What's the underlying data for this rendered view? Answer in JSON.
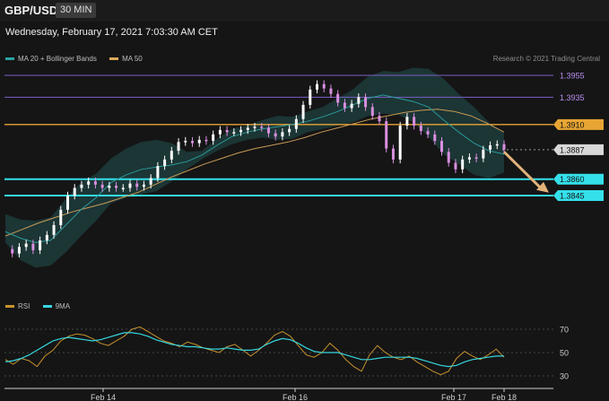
{
  "header": {
    "symbol": "GBP/USD",
    "timeframe": "30 MIN",
    "datetime": "Wednesday, February 17, 2021 7:03:30 AM CET",
    "credit": "Research © 2021 Trading Central"
  },
  "legend_main": [
    {
      "label": "MA 20 + Bollinger Bands",
      "color": "#2aa3a3"
    },
    {
      "label": "MA 50",
      "color": "#d9a85a"
    }
  ],
  "legend_rsi": [
    {
      "label": "RSI",
      "color": "#c8922e"
    },
    {
      "label": "9MA",
      "color": "#35d6e0"
    }
  ],
  "colors": {
    "candle_up": "#ffffff",
    "candle_down": "#d98fe0",
    "bollinger_fill": "#1d3838",
    "ma20": "#2a9a9a",
    "ma50": "#c99a55",
    "resistance_purple": "#7a5fc4",
    "resistance_orange": "#e7a534",
    "support_cyan": "#35e0ea",
    "current_price": "#d8d8d8",
    "arrow": "#e1b27a"
  },
  "chart_data": [
    {
      "type": "candlestick",
      "name": "price",
      "ylim": [
        1.378,
        1.3975
      ],
      "x_ticks": [
        "Feb 14",
        "Feb 16",
        "Feb 17",
        "Feb 18"
      ],
      "levels": [
        {
          "value": 1.3955,
          "label": "1.3955",
          "style": "resistance_purple"
        },
        {
          "value": 1.3935,
          "label": "1.3935",
          "style": "resistance_purple"
        },
        {
          "value": 1.391,
          "label": "1.3910",
          "style": "resistance_orange"
        },
        {
          "value": 1.3887,
          "label": "1.3887",
          "style": "current_price"
        },
        {
          "value": 1.386,
          "label": "1.3860",
          "style": "support_cyan"
        },
        {
          "value": 1.3845,
          "label": "1.3845",
          "style": "support_cyan"
        }
      ],
      "close_path": [
        1.3796,
        1.3792,
        1.3798,
        1.3801,
        1.3795,
        1.3804,
        1.3809,
        1.3818,
        1.3832,
        1.3845,
        1.3852,
        1.3855,
        1.3858,
        1.3855,
        1.3852,
        1.3854,
        1.3852,
        1.3852,
        1.3856,
        1.3853,
        1.3855,
        1.3861,
        1.3872,
        1.3878,
        1.3886,
        1.3894,
        1.3895,
        1.3893,
        1.3896,
        1.3895,
        1.3901,
        1.3905,
        1.3903,
        1.3903,
        1.3905,
        1.3907,
        1.3908,
        1.3907,
        1.3902,
        1.3899,
        1.3903,
        1.3906,
        1.3915,
        1.3928,
        1.3942,
        1.3947,
        1.3943,
        1.3938,
        1.393,
        1.3925,
        1.3929,
        1.3935,
        1.3926,
        1.3918,
        1.3913,
        1.3888,
        1.3878,
        1.3909,
        1.3917,
        1.3909,
        1.3904,
        1.3901,
        1.3895,
        1.3885,
        1.3875,
        1.3869,
        1.3878,
        1.388,
        1.3879,
        1.3887,
        1.3891,
        1.3892,
        1.3887
      ],
      "bollinger": {
        "upper": [
          1.3828,
          1.3823,
          1.3822,
          1.3825,
          1.3842,
          1.3857,
          1.3865,
          1.3879,
          1.3888,
          1.3894,
          1.3896,
          1.3893,
          1.3885,
          1.3886,
          1.3897,
          1.3906,
          1.3909,
          1.3914,
          1.3918,
          1.3917,
          1.3922,
          1.3926,
          1.3934,
          1.3942,
          1.3954,
          1.3959,
          1.3958,
          1.3962,
          1.3961,
          1.3952,
          1.3938,
          1.3926,
          1.3912,
          1.3902
        ],
        "lower": [
          1.3802,
          1.3786,
          1.3779,
          1.3781,
          1.3793,
          1.3808,
          1.3822,
          1.3838,
          1.3843,
          1.3846,
          1.3849,
          1.3858,
          1.3869,
          1.3878,
          1.3886,
          1.3892,
          1.3896,
          1.3898,
          1.3896,
          1.3897,
          1.3903,
          1.3906,
          1.3909,
          1.3912,
          1.3918,
          1.392,
          1.3919,
          1.3912,
          1.3899,
          1.3883,
          1.3874,
          1.3864,
          1.3861,
          1.3866
        ]
      },
      "ma20": [
        1.3812,
        1.3806,
        1.3802,
        1.3804,
        1.3818,
        1.3832,
        1.3843,
        1.3857,
        1.3864,
        1.3869,
        1.3871,
        1.3873,
        1.3876,
        1.3882,
        1.3891,
        1.3899,
        1.3903,
        1.3906,
        1.3908,
        1.391,
        1.3913,
        1.3917,
        1.3922,
        1.3928,
        1.3934,
        1.3937,
        1.3934,
        1.3931,
        1.3926,
        1.3914,
        1.3903,
        1.3893,
        1.3886,
        1.3883
      ],
      "ma50": [
        1.3808,
        1.3814,
        1.382,
        1.3825,
        1.383,
        1.3834,
        1.3838,
        1.3843,
        1.3848,
        1.3855,
        1.3862,
        1.3868,
        1.3874,
        1.3879,
        1.3884,
        1.3888,
        1.3891,
        1.3894,
        1.3898,
        1.3903,
        1.3907,
        1.3911,
        1.3915,
        1.3918,
        1.3921,
        1.3923,
        1.3924,
        1.3922,
        1.3918,
        1.3911,
        1.3903
      ]
    },
    {
      "type": "line",
      "name": "rsi",
      "ylim": [
        25,
        80
      ],
      "y_ticks": [
        70,
        50,
        30
      ],
      "series": [
        {
          "name": "RSI",
          "values": [
            44,
            40,
            45,
            43,
            38,
            47,
            52,
            60,
            64,
            66,
            65,
            62,
            58,
            56,
            60,
            64,
            70,
            72,
            68,
            64,
            60,
            58,
            55,
            59,
            57,
            54,
            52,
            50,
            55,
            57,
            52,
            47,
            52,
            58,
            65,
            68,
            64,
            56,
            48,
            46,
            50,
            58,
            52,
            44,
            38,
            34,
            48,
            56,
            50,
            46,
            44,
            47,
            42,
            38,
            34,
            31,
            34,
            45,
            51,
            47,
            44,
            48,
            53,
            46
          ]
        },
        {
          "name": "9MA",
          "values": [
            42,
            43,
            45,
            48,
            52,
            56,
            60,
            62,
            63,
            62,
            61,
            60,
            61,
            63,
            65,
            67,
            67,
            66,
            64,
            61,
            59,
            57,
            56,
            55,
            55,
            54,
            53,
            53,
            54,
            53,
            52,
            52,
            53,
            57,
            60,
            62,
            61,
            58,
            54,
            51,
            50,
            50,
            50,
            48,
            46,
            44,
            44,
            45,
            46,
            46,
            46,
            46,
            45,
            43,
            41,
            39,
            38,
            39,
            42,
            44,
            45,
            46,
            47,
            47
          ]
        }
      ]
    }
  ]
}
